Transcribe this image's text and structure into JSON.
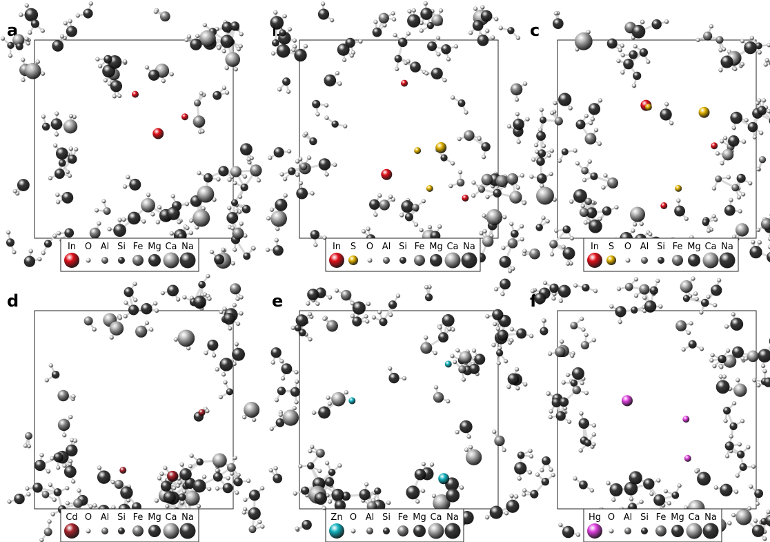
{
  "panels": [
    {
      "label": "a",
      "legend": [
        {
          "symbol": "In",
          "color": "#e0101a"
        },
        {
          "symbol": "O"
        },
        {
          "symbol": "Al"
        },
        {
          "symbol": "Si"
        },
        {
          "symbol": "Fe"
        },
        {
          "symbol": "Mg"
        },
        {
          "symbol": "Ca"
        },
        {
          "symbol": "Na"
        }
      ]
    },
    {
      "label": "b",
      "legend": [
        {
          "symbol": "In",
          "color": "#e0101a"
        },
        {
          "symbol": "S",
          "color": "#e3b400"
        },
        {
          "symbol": "O"
        },
        {
          "symbol": "Al"
        },
        {
          "symbol": "Si"
        },
        {
          "symbol": "Fe"
        },
        {
          "symbol": "Mg"
        },
        {
          "symbol": "Ca"
        },
        {
          "symbol": "Na"
        }
      ]
    },
    {
      "label": "c",
      "legend": [
        {
          "symbol": "In",
          "color": "#e0101a"
        },
        {
          "symbol": "S",
          "color": "#e3b400"
        },
        {
          "symbol": "O"
        },
        {
          "symbol": "Al"
        },
        {
          "symbol": "Si"
        },
        {
          "symbol": "Fe"
        },
        {
          "symbol": "Mg"
        },
        {
          "symbol": "Ca"
        },
        {
          "symbol": "Na"
        }
      ]
    },
    {
      "label": "d",
      "legend": [
        {
          "symbol": "Cd",
          "color": "#a8242c"
        },
        {
          "symbol": "O"
        },
        {
          "symbol": "Al"
        },
        {
          "symbol": "Si"
        },
        {
          "symbol": "Fe"
        },
        {
          "symbol": "Mg"
        },
        {
          "symbol": "Ca"
        },
        {
          "symbol": "Na"
        }
      ]
    },
    {
      "label": "e",
      "legend": [
        {
          "symbol": "Zn",
          "color": "#14b4c0"
        },
        {
          "symbol": "O"
        },
        {
          "symbol": "Al"
        },
        {
          "symbol": "Si"
        },
        {
          "symbol": "Fe"
        },
        {
          "symbol": "Mg"
        },
        {
          "symbol": "Ca"
        },
        {
          "symbol": "Na"
        }
      ]
    },
    {
      "label": "f",
      "legend": [
        {
          "symbol": "Hg",
          "color": "#e040e0"
        },
        {
          "symbol": "O"
        },
        {
          "symbol": "Al"
        },
        {
          "symbol": "Si"
        },
        {
          "symbol": "Fe"
        },
        {
          "symbol": "Mg"
        },
        {
          "symbol": "Ca"
        },
        {
          "symbol": "Na"
        }
      ]
    }
  ]
}
